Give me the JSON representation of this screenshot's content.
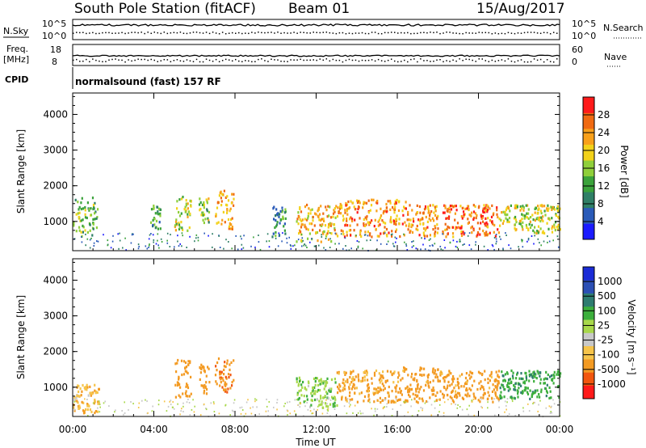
{
  "header": {
    "station": "South Pole Station (fitACF)",
    "beam": "Beam 01",
    "date": "15/Aug/2017"
  },
  "params": {
    "nsky_label": "N.Sky",
    "nsky_ticks": [
      "10^5",
      "10^0"
    ],
    "nsearch_label": "N.Search",
    "nsearch_ticks": [
      "10^5",
      "10^0"
    ],
    "freq_label_1": "Freq.",
    "freq_label_2": "[MHz]",
    "freq_ticks": [
      "18",
      "8"
    ],
    "nave_label": "Nave",
    "nave_ticks": [
      "60",
      "0"
    ],
    "cpid_label": "CPID",
    "cpid_text": "normalsound (fast) 157 RF"
  },
  "chart_data": [
    {
      "type": "heatmap",
      "panel": "power",
      "ylabel": "Slant Range [km]",
      "yticks": [
        "1000",
        "2000",
        "3000",
        "4000"
      ],
      "ylim": [
        180,
        4600
      ],
      "xlim": [
        0,
        24
      ],
      "colorbar": {
        "label": "Power [dB]",
        "ticks": [
          "4",
          "8",
          "12",
          "16",
          "20",
          "24",
          "28"
        ],
        "range": [
          0,
          32
        ],
        "colors": [
          "#1b1bff",
          "#2a5ab8",
          "#2f7f66",
          "#3aa23a",
          "#8fcf3a",
          "#f3d21a",
          "#f8a01a",
          "#f06a12",
          "#ff1a1a"
        ]
      },
      "echo_regions": [
        {
          "t": [
            0.0,
            1.2
          ],
          "r": [
            600,
            1700
          ],
          "level": 14
        },
        {
          "t": [
            3.8,
            4.3
          ],
          "r": [
            800,
            1500
          ],
          "level": 12
        },
        {
          "t": [
            5.0,
            5.8
          ],
          "r": [
            750,
            1800
          ],
          "level": 18
        },
        {
          "t": [
            6.2,
            6.7
          ],
          "r": [
            850,
            1700
          ],
          "level": 16
        },
        {
          "t": [
            7.0,
            7.9
          ],
          "r": [
            800,
            1900
          ],
          "level": 22
        },
        {
          "t": [
            9.8,
            10.5
          ],
          "r": [
            600,
            1500
          ],
          "level": 10
        },
        {
          "t": [
            11.0,
            13.0
          ],
          "r": [
            450,
            1500
          ],
          "level": 22
        },
        {
          "t": [
            13.0,
            16.5
          ],
          "r": [
            600,
            1650
          ],
          "level": 24
        },
        {
          "t": [
            16.5,
            18.0
          ],
          "r": [
            600,
            1500
          ],
          "level": 24
        },
        {
          "t": [
            18.2,
            21.0
          ],
          "r": [
            600,
            1500
          ],
          "level": 26
        },
        {
          "t": [
            21.0,
            24.0
          ],
          "r": [
            700,
            1500
          ],
          "level": 18
        }
      ]
    },
    {
      "type": "heatmap",
      "panel": "velocity",
      "ylabel": "Slant Range [km]",
      "yticks": [
        "1000",
        "2000",
        "3000",
        "4000"
      ],
      "ylim": [
        180,
        4600
      ],
      "xlim": [
        0,
        24
      ],
      "colorbar": {
        "label": "Velocity [m s⁻¹]",
        "ticks": [
          "-1000",
          "-500",
          "-100",
          "-25",
          "25",
          "100",
          "500",
          "1000"
        ],
        "colors": [
          "#ff1a1a",
          "#f2560e",
          "#f39a22",
          "#f6c44a",
          "#c8c8c8",
          "#a8d84a",
          "#3caf3c",
          "#2e7c70",
          "#2b4fb4",
          "#1a2bd6"
        ]
      },
      "echo_regions": [
        {
          "t": [
            0.0,
            1.3
          ],
          "r": [
            300,
            1100
          ],
          "v": -80
        },
        {
          "t": [
            5.0,
            5.8
          ],
          "r": [
            750,
            1800
          ],
          "v": -300
        },
        {
          "t": [
            6.2,
            6.7
          ],
          "r": [
            850,
            1700
          ],
          "v": -300
        },
        {
          "t": [
            7.0,
            7.9
          ],
          "r": [
            850,
            1900
          ],
          "v": -400
        },
        {
          "t": [
            11.0,
            13.0
          ],
          "r": [
            450,
            1300
          ],
          "v": 80
        },
        {
          "t": [
            13.0,
            16.0
          ],
          "r": [
            600,
            1500
          ],
          "v": -150
        },
        {
          "t": [
            16.0,
            18.0
          ],
          "r": [
            600,
            1600
          ],
          "v": -250
        },
        {
          "t": [
            18.0,
            21.0
          ],
          "r": [
            600,
            1500
          ],
          "v": -200
        },
        {
          "t": [
            21.0,
            24.0
          ],
          "r": [
            700,
            1500
          ],
          "v": 400
        }
      ]
    }
  ],
  "x_axis": {
    "ticks": [
      "00:00",
      "04:00",
      "08:00",
      "12:00",
      "16:00",
      "20:00",
      "00:00"
    ],
    "label": "Time UT"
  }
}
